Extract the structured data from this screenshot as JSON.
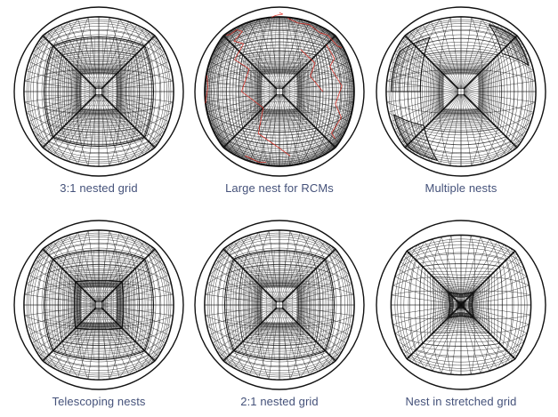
{
  "figure": {
    "line_color": "#111111",
    "map_color": "#e0261c",
    "caption_color": "#45527a",
    "panels": [
      {
        "caption": "3:1 nested grid",
        "kind": "nest31"
      },
      {
        "caption": "Large nest for RCMs",
        "kind": "rcm"
      },
      {
        "caption": "Multiple nests",
        "kind": "multi"
      },
      {
        "caption": "Telescoping nests",
        "kind": "telescope"
      },
      {
        "caption": "2:1 nested grid",
        "kind": "nest21"
      },
      {
        "caption": "Nest in stretched grid",
        "kind": "stretched"
      }
    ]
  }
}
